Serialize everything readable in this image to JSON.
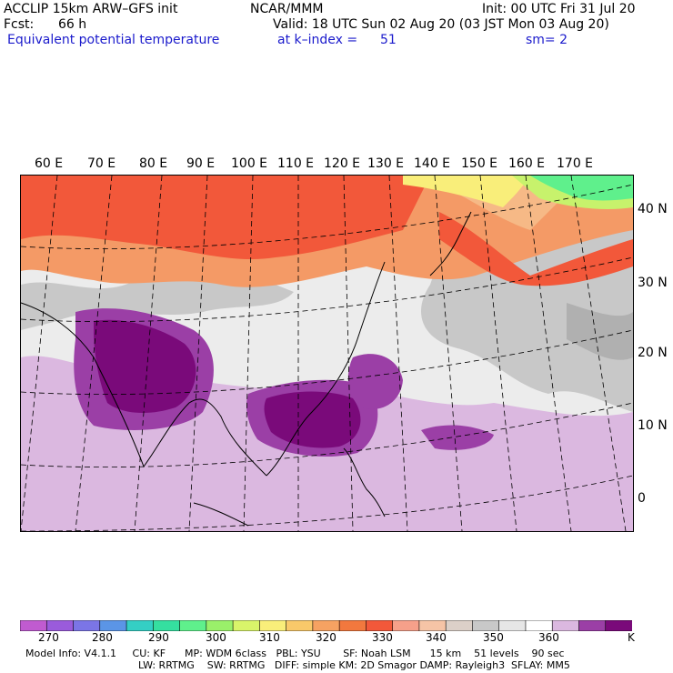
{
  "header": {
    "model": "ACCLIP 15km ARW–GFS init",
    "org": "NCAR/MMM",
    "init": "Init: 00 UTC Fri 31 Jul 20",
    "fcst_label": "Fcst:",
    "fcst_value": "66 h",
    "valid": "Valid: 18 UTC Sun 02 Aug 20 (03 JST Mon 03 Aug 20)",
    "field": "Equivalent potential temperature",
    "level": "at k–index =",
    "level_value": "51",
    "smooth": "sm= 2"
  },
  "map": {
    "lon_labels": [
      "60 E",
      "70 E",
      "80 E",
      "90 E",
      "100 E",
      "110 E",
      "120 E",
      "130 E",
      "140 E",
      "150 E",
      "160 E",
      "170 E"
    ],
    "lat_labels": [
      "40 N",
      "30 N",
      "20 N",
      "10 N",
      "0"
    ],
    "colors": {
      "deep_purple": "#7a0a7a",
      "purple": "#9b3fa6",
      "light_purple": "#dbb8e0",
      "very_light": "#ececec",
      "gray": "#c8c8c8",
      "dark_gray": "#b0b0b0",
      "orange": "#f49a66",
      "red": "#f2583a",
      "light_orange": "#f6b986",
      "yellow": "#f9ee7a",
      "lime": "#c7f26c",
      "green": "#5ff08c"
    }
  },
  "colorbar": {
    "colors": [
      "#c05bd0",
      "#9a5bdb",
      "#7b75e6",
      "#5b95e6",
      "#34cfc4",
      "#35dfa0",
      "#5ff08c",
      "#9af06a",
      "#d9f46a",
      "#f9ee7a",
      "#f9c96a",
      "#f6a262",
      "#f2783e",
      "#f2583a",
      "#f6a08a",
      "#f6c4a6",
      "#dcd0c8",
      "#c8c8c8",
      "#e6e6e6",
      "#ffffff",
      "#dbb8e0",
      "#9b3fa6",
      "#7a0a7a"
    ],
    "ticks": [
      "270",
      "280",
      "290",
      "300",
      "310",
      "320",
      "330",
      "340",
      "350",
      "360"
    ],
    "unit": "K"
  },
  "footer": {
    "line1": "Model Info: V4.1.1     CU: KF      MP: WDM 6class   PBL: YSU       SF: Noah LSM      15 km    51 levels    90 sec",
    "line2": "LW: RRTMG    SW: RRTMG   DIFF: simple KM: 2D Smagor DAMP: Rayleigh3  SFLAY: MM5"
  }
}
